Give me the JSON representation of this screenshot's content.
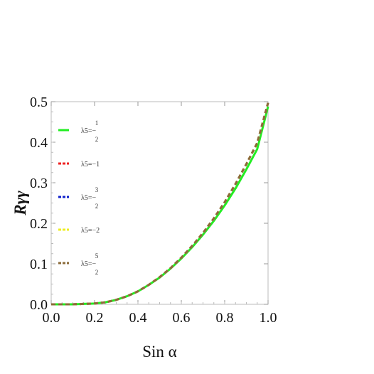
{
  "chart_data": {
    "type": "line",
    "xlabel": "Sin α",
    "ylabel": "Rγγ",
    "xlim": [
      0.0,
      1.0
    ],
    "ylim": [
      0.0,
      0.5
    ],
    "x_ticks": [
      "0.0",
      "0.2",
      "0.4",
      "0.6",
      "0.8",
      "1.0"
    ],
    "y_ticks": [
      "0.0",
      "0.1",
      "0.2",
      "0.3",
      "0.4",
      "0.5"
    ],
    "grid": false,
    "legend_position": "top-left",
    "x": [
      0.0,
      0.05,
      0.1,
      0.15,
      0.2,
      0.25,
      0.3,
      0.35,
      0.4,
      0.45,
      0.5,
      0.55,
      0.6,
      0.65,
      0.7,
      0.75,
      0.8,
      0.85,
      0.9,
      0.95,
      1.0
    ],
    "series": [
      {
        "label_prefix": "λ5=−",
        "label_num": "1",
        "label_den": "2",
        "label": "",
        "color": "#22ee22",
        "style": "solid",
        "values": [
          0.0,
          0.0,
          0.0,
          0.001,
          0.002,
          0.005,
          0.011,
          0.02,
          0.032,
          0.048,
          0.066,
          0.088,
          0.113,
          0.141,
          0.172,
          0.206,
          0.244,
          0.286,
          0.333,
          0.383,
          0.488
        ]
      },
      {
        "label_prefix": "λ5=−",
        "label_num": "",
        "label_den": "",
        "label": "1",
        "color": "#ee2222",
        "style": "dashed",
        "values": [
          0.0,
          0.0,
          0.0,
          0.001,
          0.002,
          0.005,
          0.011,
          0.02,
          0.032,
          0.048,
          0.067,
          0.089,
          0.115,
          0.144,
          0.176,
          0.212,
          0.252,
          0.297,
          0.346,
          0.398,
          0.497
        ]
      },
      {
        "label_prefix": "λ5=−",
        "label_num": "3",
        "label_den": "2",
        "label": "",
        "color": "#1122cc",
        "style": "dashed",
        "values": [
          0.0,
          0.0,
          0.0,
          0.001,
          0.002,
          0.005,
          0.011,
          0.02,
          0.032,
          0.048,
          0.067,
          0.089,
          0.115,
          0.144,
          0.176,
          0.212,
          0.252,
          0.297,
          0.346,
          0.398,
          0.497
        ]
      },
      {
        "label_prefix": "λ5=−",
        "label_num": "",
        "label_den": "",
        "label": "2",
        "color": "#eeee22",
        "style": "dashed",
        "values": [
          0.0,
          0.0,
          0.0,
          0.001,
          0.002,
          0.005,
          0.011,
          0.02,
          0.032,
          0.048,
          0.067,
          0.089,
          0.115,
          0.144,
          0.176,
          0.212,
          0.252,
          0.297,
          0.346,
          0.398,
          0.497
        ]
      },
      {
        "label_prefix": "λ5=−",
        "label_num": "5",
        "label_den": "2",
        "label": "",
        "color": "#8b6b3a",
        "style": "dashed",
        "values": [
          0.0,
          0.0,
          0.0,
          0.001,
          0.002,
          0.005,
          0.011,
          0.02,
          0.032,
          0.048,
          0.067,
          0.089,
          0.115,
          0.144,
          0.176,
          0.212,
          0.252,
          0.297,
          0.346,
          0.398,
          0.497
        ]
      }
    ]
  }
}
